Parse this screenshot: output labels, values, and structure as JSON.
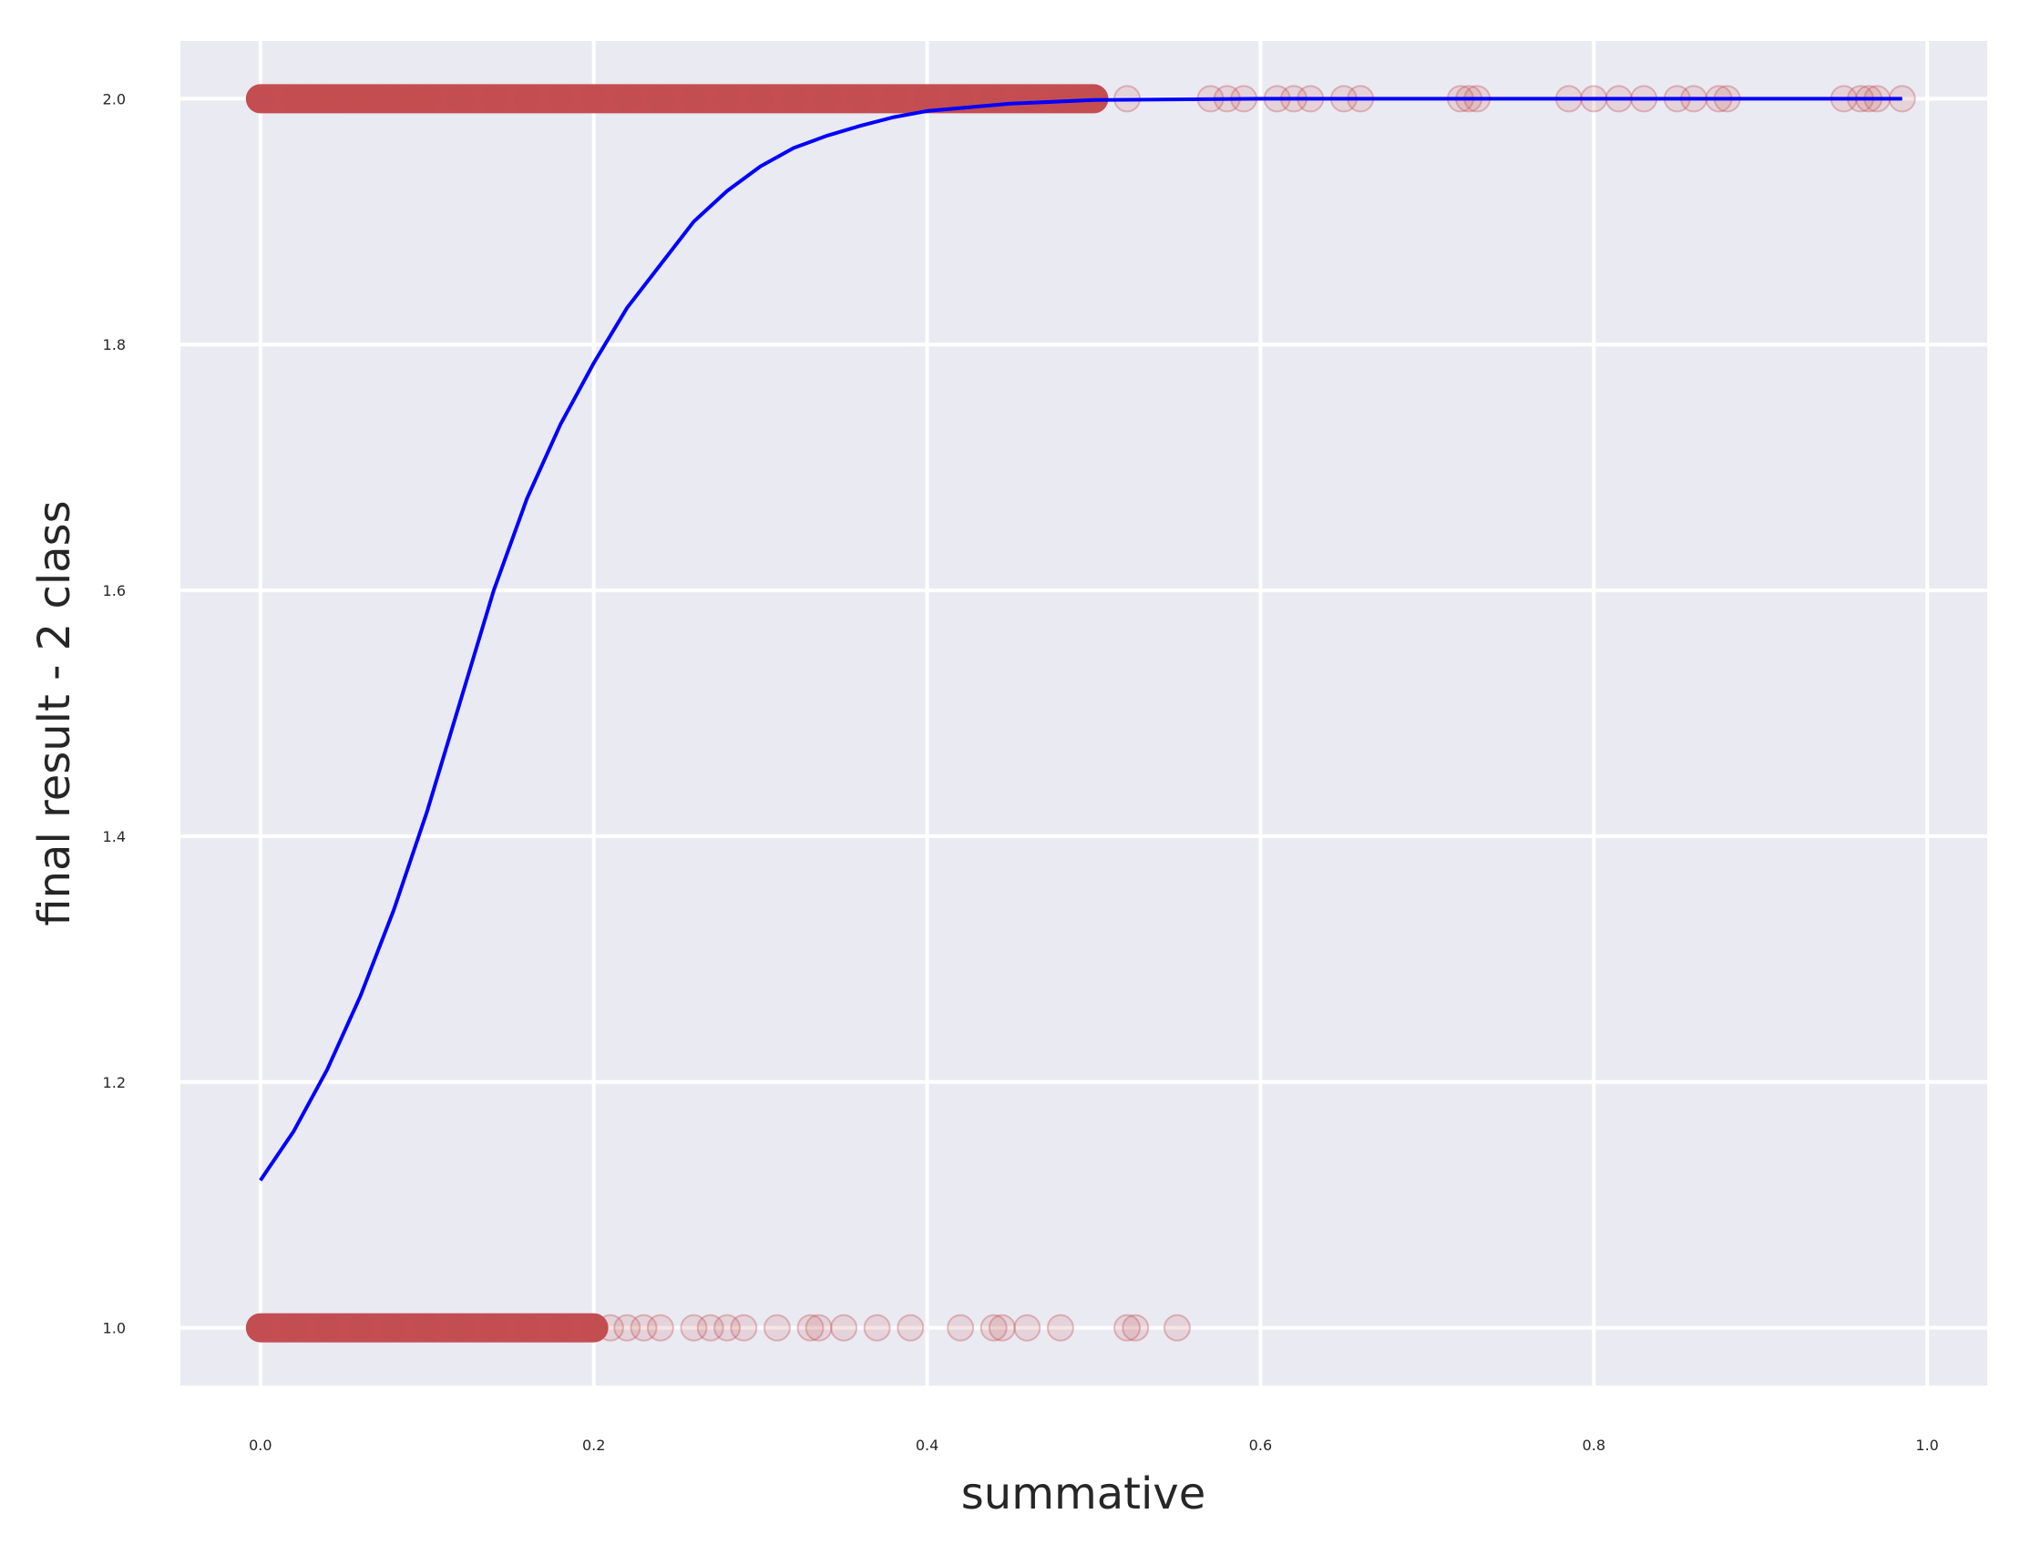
{
  "chart_data": {
    "type": "scatter",
    "title": "",
    "xlabel": "summative",
    "ylabel": "final result - 2 class",
    "xlim": [
      -0.048,
      1.036
    ],
    "ylim": [
      0.953,
      2.047
    ],
    "xticks": [
      0.0,
      0.2,
      0.4,
      0.6,
      0.8,
      1.0
    ],
    "xtick_labels": [
      "0.0",
      "0.2",
      "0.4",
      "0.6",
      "0.8",
      "1.0"
    ],
    "yticks": [
      1.0,
      1.2,
      1.4,
      1.6,
      1.8,
      2.0
    ],
    "ytick_labels": [
      "1.0",
      "1.2",
      "1.4",
      "1.6",
      "1.8",
      "2.0"
    ],
    "grid": true,
    "background_color": "#eaeaf2",
    "grid_color": "#ffffff",
    "series": [
      {
        "kind": "scatter",
        "color": "#c44e52",
        "opacity": 0.15,
        "dense_ranges": [
          {
            "y": 2.0,
            "from": 0.0,
            "to": 0.5
          },
          {
            "y": 1.0,
            "from": 0.0,
            "to": 0.2
          }
        ],
        "points": [
          {
            "x": 0.0,
            "y": 2.0
          },
          {
            "x": 0.02,
            "y": 2.0
          },
          {
            "x": 0.03,
            "y": 2.0
          },
          {
            "x": 0.04,
            "y": 2.0
          },
          {
            "x": 0.05,
            "y": 2.0
          },
          {
            "x": 0.06,
            "y": 2.0
          },
          {
            "x": 0.07,
            "y": 2.0
          },
          {
            "x": 0.08,
            "y": 2.0
          },
          {
            "x": 0.09,
            "y": 2.0
          },
          {
            "x": 0.1,
            "y": 2.0
          },
          {
            "x": 0.12,
            "y": 2.0
          },
          {
            "x": 0.14,
            "y": 2.0
          },
          {
            "x": 0.16,
            "y": 2.0
          },
          {
            "x": 0.18,
            "y": 2.0
          },
          {
            "x": 0.2,
            "y": 2.0
          },
          {
            "x": 0.22,
            "y": 2.0
          },
          {
            "x": 0.24,
            "y": 2.0
          },
          {
            "x": 0.26,
            "y": 2.0
          },
          {
            "x": 0.28,
            "y": 2.0
          },
          {
            "x": 0.3,
            "y": 2.0
          },
          {
            "x": 0.32,
            "y": 2.0
          },
          {
            "x": 0.34,
            "y": 2.0
          },
          {
            "x": 0.36,
            "y": 2.0
          },
          {
            "x": 0.38,
            "y": 2.0
          },
          {
            "x": 0.4,
            "y": 2.0
          },
          {
            "x": 0.42,
            "y": 2.0
          },
          {
            "x": 0.44,
            "y": 2.0
          },
          {
            "x": 0.46,
            "y": 2.0
          },
          {
            "x": 0.48,
            "y": 2.0
          },
          {
            "x": 0.49,
            "y": 2.0
          },
          {
            "x": 0.5,
            "y": 2.0
          },
          {
            "x": 0.52,
            "y": 2.0
          },
          {
            "x": 0.57,
            "y": 2.0
          },
          {
            "x": 0.58,
            "y": 2.0
          },
          {
            "x": 0.59,
            "y": 2.0
          },
          {
            "x": 0.61,
            "y": 2.0
          },
          {
            "x": 0.62,
            "y": 2.0
          },
          {
            "x": 0.63,
            "y": 2.0
          },
          {
            "x": 0.65,
            "y": 2.0
          },
          {
            "x": 0.66,
            "y": 2.0
          },
          {
            "x": 0.72,
            "y": 2.0
          },
          {
            "x": 0.725,
            "y": 2.0
          },
          {
            "x": 0.73,
            "y": 2.0
          },
          {
            "x": 0.785,
            "y": 2.0
          },
          {
            "x": 0.8,
            "y": 2.0
          },
          {
            "x": 0.815,
            "y": 2.0
          },
          {
            "x": 0.83,
            "y": 2.0
          },
          {
            "x": 0.85,
            "y": 2.0
          },
          {
            "x": 0.86,
            "y": 2.0
          },
          {
            "x": 0.875,
            "y": 2.0
          },
          {
            "x": 0.88,
            "y": 2.0
          },
          {
            "x": 0.95,
            "y": 2.0
          },
          {
            "x": 0.96,
            "y": 2.0
          },
          {
            "x": 0.965,
            "y": 2.0
          },
          {
            "x": 0.97,
            "y": 2.0
          },
          {
            "x": 0.985,
            "y": 2.0
          },
          {
            "x": 0.0,
            "y": 1.0
          },
          {
            "x": 0.02,
            "y": 1.0
          },
          {
            "x": 0.04,
            "y": 1.0
          },
          {
            "x": 0.06,
            "y": 1.0
          },
          {
            "x": 0.08,
            "y": 1.0
          },
          {
            "x": 0.1,
            "y": 1.0
          },
          {
            "x": 0.12,
            "y": 1.0
          },
          {
            "x": 0.14,
            "y": 1.0
          },
          {
            "x": 0.16,
            "y": 1.0
          },
          {
            "x": 0.18,
            "y": 1.0
          },
          {
            "x": 0.2,
            "y": 1.0
          },
          {
            "x": 0.21,
            "y": 1.0
          },
          {
            "x": 0.22,
            "y": 1.0
          },
          {
            "x": 0.23,
            "y": 1.0
          },
          {
            "x": 0.24,
            "y": 1.0
          },
          {
            "x": 0.26,
            "y": 1.0
          },
          {
            "x": 0.27,
            "y": 1.0
          },
          {
            "x": 0.28,
            "y": 1.0
          },
          {
            "x": 0.29,
            "y": 1.0
          },
          {
            "x": 0.31,
            "y": 1.0
          },
          {
            "x": 0.33,
            "y": 1.0
          },
          {
            "x": 0.335,
            "y": 1.0
          },
          {
            "x": 0.35,
            "y": 1.0
          },
          {
            "x": 0.37,
            "y": 1.0
          },
          {
            "x": 0.39,
            "y": 1.0
          },
          {
            "x": 0.42,
            "y": 1.0
          },
          {
            "x": 0.44,
            "y": 1.0
          },
          {
            "x": 0.445,
            "y": 1.0
          },
          {
            "x": 0.46,
            "y": 1.0
          },
          {
            "x": 0.48,
            "y": 1.0
          },
          {
            "x": 0.52,
            "y": 1.0
          },
          {
            "x": 0.525,
            "y": 1.0
          },
          {
            "x": 0.55,
            "y": 1.0
          }
        ]
      },
      {
        "kind": "line",
        "color": "#0000ff",
        "points": [
          {
            "x": 0.0,
            "y": 1.12
          },
          {
            "x": 0.02,
            "y": 1.16
          },
          {
            "x": 0.04,
            "y": 1.21
          },
          {
            "x": 0.06,
            "y": 1.27
          },
          {
            "x": 0.08,
            "y": 1.34
          },
          {
            "x": 0.1,
            "y": 1.42
          },
          {
            "x": 0.12,
            "y": 1.51
          },
          {
            "x": 0.14,
            "y": 1.6
          },
          {
            "x": 0.16,
            "y": 1.675
          },
          {
            "x": 0.18,
            "y": 1.735
          },
          {
            "x": 0.2,
            "y": 1.785
          },
          {
            "x": 0.22,
            "y": 1.83
          },
          {
            "x": 0.24,
            "y": 1.865
          },
          {
            "x": 0.26,
            "y": 1.9
          },
          {
            "x": 0.28,
            "y": 1.925
          },
          {
            "x": 0.3,
            "y": 1.945
          },
          {
            "x": 0.32,
            "y": 1.96
          },
          {
            "x": 0.34,
            "y": 1.97
          },
          {
            "x": 0.36,
            "y": 1.978
          },
          {
            "x": 0.38,
            "y": 1.985
          },
          {
            "x": 0.4,
            "y": 1.99
          },
          {
            "x": 0.45,
            "y": 1.996
          },
          {
            "x": 0.5,
            "y": 1.999
          },
          {
            "x": 0.6,
            "y": 2.0
          },
          {
            "x": 0.7,
            "y": 2.0
          },
          {
            "x": 0.8,
            "y": 2.0
          },
          {
            "x": 0.9,
            "y": 2.0
          },
          {
            "x": 0.985,
            "y": 2.0
          }
        ]
      }
    ]
  }
}
